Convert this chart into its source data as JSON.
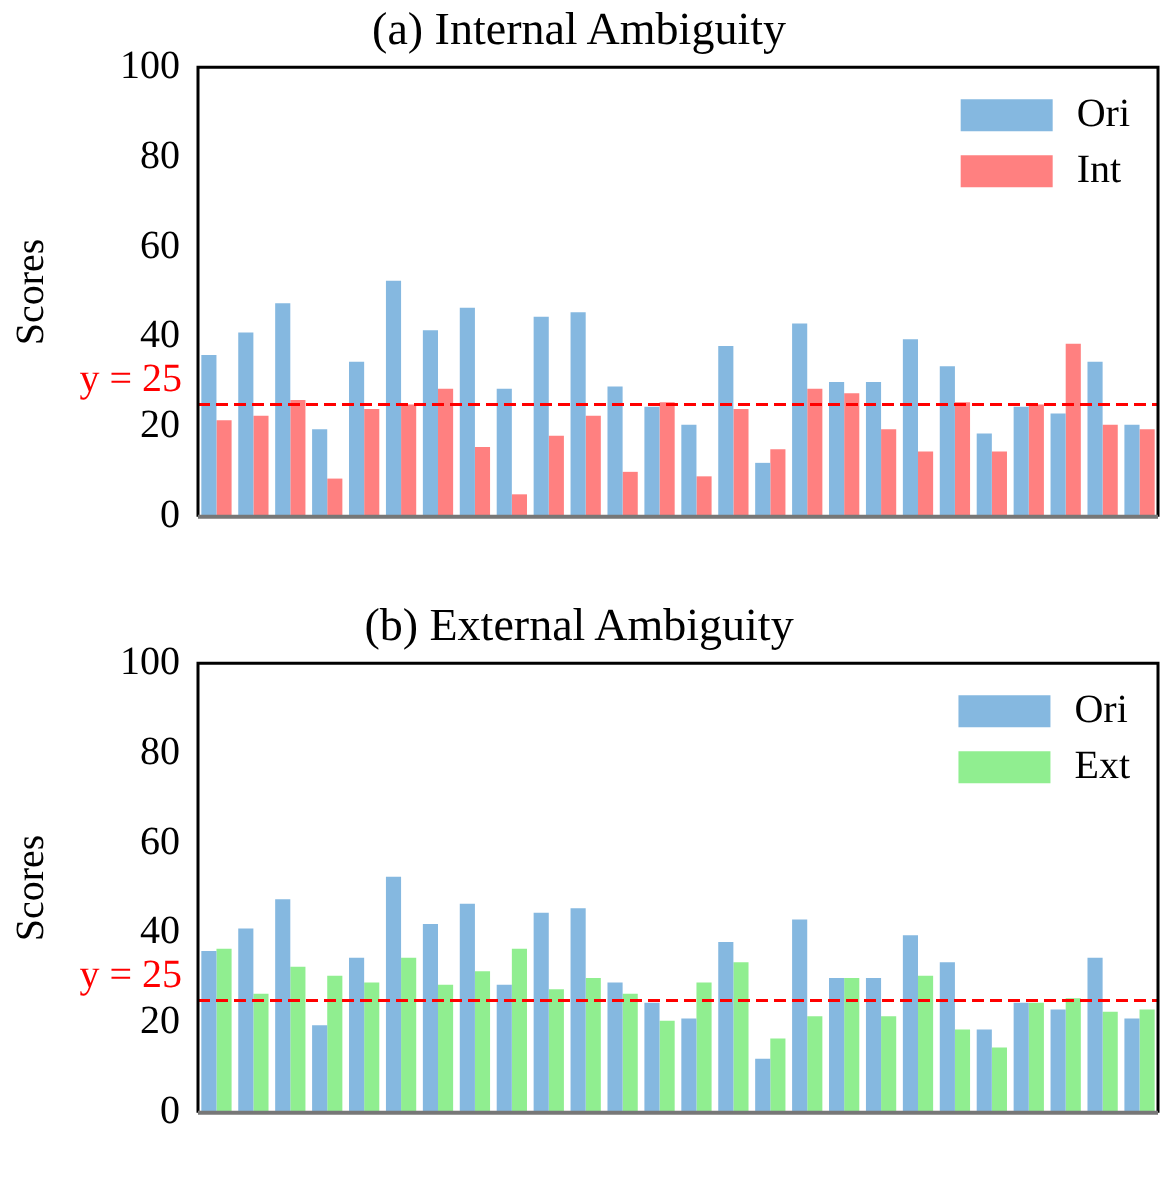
{
  "chart_data": [
    {
      "type": "bar",
      "title": "(a) Internal Ambiguity",
      "ylabel": "Scores",
      "categories": [
        null,
        null,
        null,
        null,
        null,
        null,
        null,
        null,
        null,
        null,
        null,
        null,
        null,
        null,
        null,
        null,
        null,
        null,
        null,
        null,
        null,
        null,
        null,
        null,
        null,
        null
      ],
      "series": [
        {
          "name": "Ori",
          "color": "#85b8e0",
          "values": [
            36,
            41,
            47.5,
            19.5,
            34.5,
            52.5,
            41.5,
            46.5,
            28.5,
            44.5,
            45.5,
            29,
            24.5,
            20.5,
            38,
            12,
            43,
            30,
            30,
            39.5,
            33.5,
            18.5,
            24.5,
            23,
            34.5,
            20.5
          ]
        },
        {
          "name": "Int",
          "color": "#ff8080",
          "values": [
            21.5,
            22.5,
            26,
            8.5,
            24,
            25,
            28.5,
            15.5,
            5,
            18,
            22.5,
            10,
            25.5,
            9,
            24,
            15,
            28.5,
            27.5,
            19.5,
            14.5,
            25.5,
            14.5,
            25,
            38.5,
            20.5,
            19.5
          ]
        }
      ],
      "ylim": [
        0,
        100
      ],
      "yticks": [
        0,
        20,
        40,
        60,
        80,
        100
      ],
      "grid": false,
      "legend": "top right",
      "ref_lines": [
        {
          "axis": "y",
          "value": 25,
          "label": "y = 25",
          "color": "#ff0000",
          "line_style": "dashed"
        }
      ]
    },
    {
      "type": "bar",
      "title": "(b) External Ambiguity",
      "ylabel": "Scores",
      "categories": [
        null,
        null,
        null,
        null,
        null,
        null,
        null,
        null,
        null,
        null,
        null,
        null,
        null,
        null,
        null,
        null,
        null,
        null,
        null,
        null,
        null,
        null,
        null,
        null,
        null,
        null
      ],
      "series": [
        {
          "name": "Ori",
          "color": "#85b8e0",
          "values": [
            36,
            41,
            47.5,
            19.5,
            34.5,
            52.5,
            42,
            46.5,
            28.5,
            44.5,
            45.5,
            29,
            24.5,
            21,
            38,
            12,
            43,
            30,
            30,
            39.5,
            33.5,
            18.5,
            24.5,
            23,
            34.5,
            21
          ]
        },
        {
          "name": "Ext",
          "color": "#90ee90",
          "values": [
            36.5,
            26.5,
            32.5,
            30.5,
            29,
            34.5,
            28.5,
            31.5,
            36.5,
            27.5,
            30,
            26.5,
            20.5,
            29,
            33.5,
            16.5,
            21.5,
            30,
            21.5,
            30.5,
            18.5,
            14.5,
            24.5,
            25.5,
            22.5,
            23
          ]
        }
      ],
      "ylim": [
        0,
        100
      ],
      "yticks": [
        0,
        20,
        40,
        60,
        80,
        100
      ],
      "grid": false,
      "legend": "top right",
      "ref_lines": [
        {
          "axis": "y",
          "value": 25,
          "label": "y = 25",
          "color": "#ff0000",
          "line_style": "dashed"
        }
      ]
    }
  ]
}
